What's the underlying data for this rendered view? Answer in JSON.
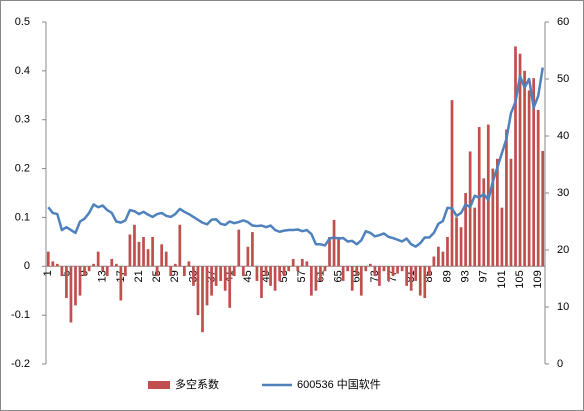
{
  "chart_data": {
    "type": "combo",
    "categories": [
      "1",
      null,
      null,
      null,
      "5",
      null,
      null,
      null,
      "9",
      null,
      null,
      null,
      "13",
      null,
      null,
      null,
      "17",
      null,
      null,
      null,
      "21",
      null,
      null,
      null,
      "25",
      null,
      null,
      null,
      "29",
      null,
      null,
      null,
      "33",
      null,
      null,
      null,
      "37",
      null,
      null,
      null,
      "41",
      null,
      null,
      null,
      "45",
      null,
      null,
      null,
      "49",
      null,
      null,
      null,
      "53",
      null,
      null,
      null,
      "57",
      null,
      null,
      null,
      "61",
      null,
      null,
      null,
      "65",
      null,
      null,
      null,
      "69",
      null,
      null,
      null,
      "73",
      null,
      null,
      null,
      "77",
      null,
      null,
      null,
      "81",
      null,
      null,
      null,
      "85",
      null,
      null,
      null,
      "89",
      null,
      null,
      null,
      "93",
      null,
      null,
      null,
      "97",
      null,
      null,
      null,
      "101",
      null,
      null,
      null,
      "105",
      null,
      null,
      null,
      "109",
      null
    ],
    "series": [
      {
        "name": "多空系数",
        "type": "bar",
        "color": "#c0504d",
        "values": [
          0.03,
          0.01,
          0.005,
          -0.02,
          -0.065,
          -0.115,
          -0.08,
          -0.06,
          -0.02,
          -0.01,
          0.005,
          0.03,
          -0.01,
          -0.02,
          0.015,
          0.005,
          -0.07,
          -0.02,
          0.065,
          0.085,
          0.05,
          0.06,
          0.035,
          0.06,
          -0.02,
          0.045,
          0.03,
          -0.02,
          0.005,
          0.085,
          -0.02,
          0.01,
          -0.04,
          -0.1,
          -0.135,
          -0.08,
          -0.06,
          -0.04,
          -0.03,
          -0.05,
          -0.085,
          -0.02,
          0.075,
          -0.02,
          0.04,
          0.07,
          -0.03,
          -0.065,
          -0.02,
          -0.04,
          -0.05,
          -0.03,
          -0.02,
          -0.01,
          0.015,
          -0.01,
          0.015,
          0.01,
          -0.06,
          -0.05,
          -0.03,
          -0.01,
          0.06,
          0.095,
          0.06,
          -0.03,
          -0.01,
          -0.05,
          -0.02,
          -0.06,
          -0.01,
          0.005,
          -0.02,
          -0.04,
          -0.01,
          -0.03,
          -0.02,
          -0.015,
          -0.01,
          -0.04,
          -0.05,
          -0.03,
          -0.06,
          -0.065,
          -0.02,
          0.02,
          0.04,
          0.03,
          0.06,
          0.34,
          0.1,
          0.08,
          0.15,
          0.235,
          0.12,
          0.285,
          0.18,
          0.29,
          0.2,
          0.22,
          0.12,
          0.28,
          0.22,
          0.45,
          0.435,
          0.4,
          0.36,
          0.385,
          0.32,
          0.236
        ]
      },
      {
        "name": "600536 中国软件",
        "type": "line",
        "axis": "y2",
        "color": "#4f81bd",
        "values": [
          27.5,
          26.5,
          26.3,
          23.5,
          24,
          23.5,
          23,
          25,
          25.5,
          26.5,
          28,
          27.5,
          27.8,
          27,
          26.5,
          25,
          24.8,
          25.2,
          27,
          26.8,
          26.3,
          26.7,
          26.2,
          25.8,
          26.3,
          26.5,
          26,
          25.8,
          26.3,
          27.2,
          26.7,
          26.3,
          25.8,
          25.3,
          24.8,
          24.5,
          25.3,
          25.4,
          24.6,
          24.4,
          25,
          24.7,
          24.9,
          25.2,
          24.9,
          24.3,
          24.2,
          24.3,
          24,
          24.3,
          23.5,
          23.2,
          23.4,
          23.5,
          23.5,
          23.6,
          23.3,
          23.5,
          22.8,
          21,
          21,
          20.8,
          22,
          22.2,
          22,
          22.1,
          21.5,
          21.6,
          21,
          21.7,
          23.3,
          23,
          22.4,
          22.6,
          22.9,
          22.3,
          22.1,
          21.8,
          21.5,
          22,
          21,
          20.6,
          21.2,
          22.2,
          22.2,
          23,
          24.6,
          25.1,
          27.4,
          27.3,
          26,
          26.5,
          28,
          27.5,
          29.5,
          29.2,
          29.8,
          28.8,
          32,
          34.5,
          37,
          39.5,
          44,
          46,
          50.5,
          48.5,
          50,
          45,
          47,
          52
        ]
      }
    ],
    "ylim": [
      -0.2,
      0.5
    ],
    "yticks": [
      -0.2,
      -0.1,
      0,
      0.1,
      0.2,
      0.3,
      0.4,
      0.5
    ],
    "y2lim": [
      0,
      60
    ],
    "y2ticks": [
      0,
      10,
      20,
      30,
      40,
      50,
      60
    ],
    "legend": "bottom"
  }
}
